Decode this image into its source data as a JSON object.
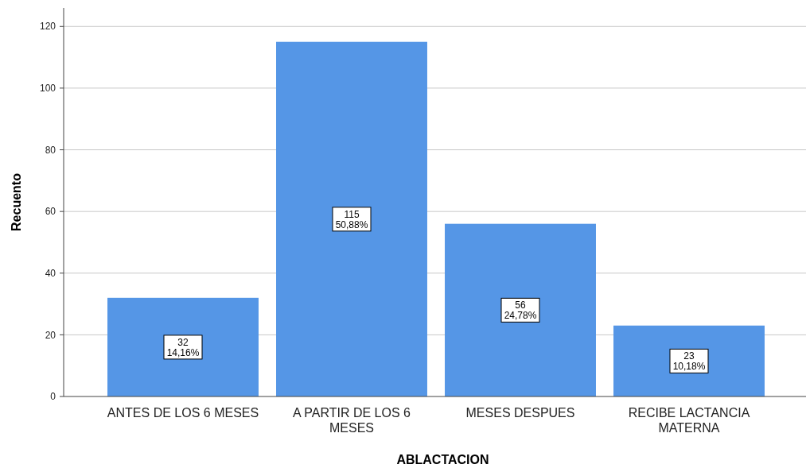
{
  "chart_data": {
    "type": "bar",
    "xlabel": "ABLACTACION",
    "ylabel": "Recuento",
    "categories": [
      "ANTES DE LOS 6 MESES",
      "A PARTIR DE LOS 6 MESES",
      "MESES DESPUES",
      "RECIBE LACTANCIA MATERNA"
    ],
    "values": [
      32,
      115,
      56,
      23
    ],
    "color": "#5596e6",
    "value_labels": [
      "32\n14,16%",
      "115\n50,88%",
      "56\n24,78%",
      "23\n10,18%"
    ],
    "ylim": [
      0,
      126
    ],
    "yticks": [
      0,
      20,
      40,
      60,
      80,
      100,
      120
    ],
    "grid": "y"
  }
}
